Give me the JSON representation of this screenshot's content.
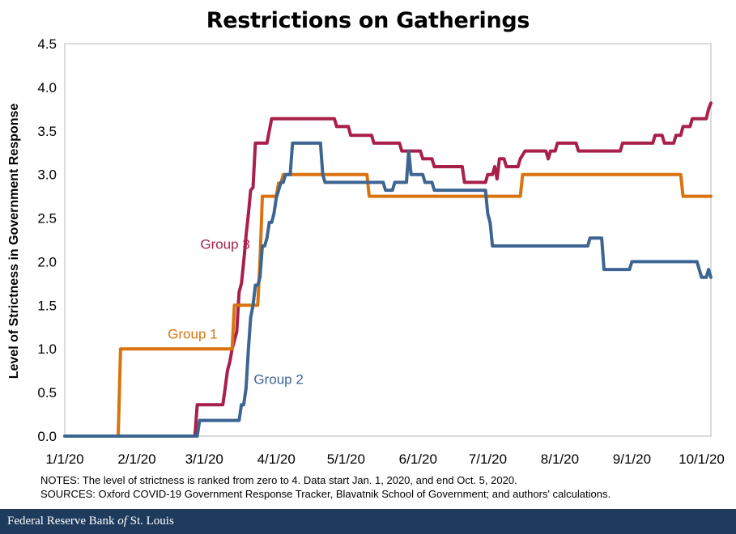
{
  "chart_data": {
    "type": "line",
    "title": "Restrictions on Gatherings",
    "ylabel": "Level of Strictness in Government Response",
    "xlabel": "",
    "ylim": [
      0,
      4.5
    ],
    "y_ticks": [
      "0.0",
      "0.5",
      "1.0",
      "1.5",
      "2.0",
      "2.5",
      "3.0",
      "3.5",
      "4.0",
      "4.5"
    ],
    "x_ticks": [
      "1/1/20",
      "2/1/20",
      "3/1/20",
      "4/1/20",
      "5/1/20",
      "6/1/20",
      "7/1/20",
      "8/1/20",
      "9/1/20",
      "10/1/20"
    ],
    "x_range": [
      "2020-01-01",
      "2020-10-05"
    ],
    "grid": false,
    "series": [
      {
        "name": "Group 3",
        "color": "#a8204a",
        "points": [
          [
            "2020-01-01",
            0
          ],
          [
            "2020-02-26",
            0
          ],
          [
            "2020-02-27",
            0.36
          ],
          [
            "2020-03-09",
            0.36
          ],
          [
            "2020-03-10",
            0.55
          ],
          [
            "2020-03-11",
            0.75
          ],
          [
            "2020-03-12",
            0.85
          ],
          [
            "2020-03-13",
            1.0
          ],
          [
            "2020-03-15",
            1.2
          ],
          [
            "2020-03-16",
            1.65
          ],
          [
            "2020-03-17",
            1.75
          ],
          [
            "2020-03-18",
            2.0
          ],
          [
            "2020-03-19",
            2.3
          ],
          [
            "2020-03-20",
            2.55
          ],
          [
            "2020-03-21",
            2.82
          ],
          [
            "2020-03-22",
            2.85
          ],
          [
            "2020-03-23",
            3.36
          ],
          [
            "2020-03-28",
            3.36
          ],
          [
            "2020-03-29",
            3.5
          ],
          [
            "2020-03-30",
            3.64
          ],
          [
            "2020-04-26",
            3.64
          ],
          [
            "2020-04-27",
            3.55
          ],
          [
            "2020-05-02",
            3.55
          ],
          [
            "2020-05-03",
            3.45
          ],
          [
            "2020-05-12",
            3.45
          ],
          [
            "2020-05-13",
            3.36
          ],
          [
            "2020-05-24",
            3.36
          ],
          [
            "2020-05-25",
            3.27
          ],
          [
            "2020-06-02",
            3.27
          ],
          [
            "2020-06-03",
            3.18
          ],
          [
            "2020-06-07",
            3.18
          ],
          [
            "2020-06-08",
            3.09
          ],
          [
            "2020-06-20",
            3.09
          ],
          [
            "2020-06-21",
            2.91
          ],
          [
            "2020-06-30",
            2.91
          ],
          [
            "2020-07-01",
            3.0
          ],
          [
            "2020-07-03",
            3.0
          ],
          [
            "2020-07-04",
            3.09
          ],
          [
            "2020-07-05",
            2.95
          ],
          [
            "2020-07-06",
            3.18
          ],
          [
            "2020-07-08",
            3.18
          ],
          [
            "2020-07-09",
            3.09
          ],
          [
            "2020-07-14",
            3.09
          ],
          [
            "2020-07-15",
            3.18
          ],
          [
            "2020-07-17",
            3.27
          ],
          [
            "2020-07-26",
            3.27
          ],
          [
            "2020-07-27",
            3.18
          ],
          [
            "2020-07-28",
            3.27
          ],
          [
            "2020-07-30",
            3.27
          ],
          [
            "2020-07-31",
            3.36
          ],
          [
            "2020-08-08",
            3.36
          ],
          [
            "2020-08-09",
            3.27
          ],
          [
            "2020-08-27",
            3.27
          ],
          [
            "2020-08-28",
            3.36
          ],
          [
            "2020-09-10",
            3.36
          ],
          [
            "2020-09-11",
            3.45
          ],
          [
            "2020-09-14",
            3.45
          ],
          [
            "2020-09-15",
            3.36
          ],
          [
            "2020-09-19",
            3.36
          ],
          [
            "2020-09-20",
            3.45
          ],
          [
            "2020-09-22",
            3.45
          ],
          [
            "2020-09-23",
            3.55
          ],
          [
            "2020-09-26",
            3.55
          ],
          [
            "2020-09-27",
            3.64
          ],
          [
            "2020-10-03",
            3.64
          ],
          [
            "2020-10-04",
            3.75
          ],
          [
            "2020-10-05",
            3.82
          ]
        ]
      },
      {
        "name": "Group 1",
        "color": "#d9730d",
        "points": [
          [
            "2020-01-01",
            0
          ],
          [
            "2020-01-24",
            0
          ],
          [
            "2020-01-25",
            1.0
          ],
          [
            "2020-03-13",
            1.0
          ],
          [
            "2020-03-14",
            1.5
          ],
          [
            "2020-03-24",
            1.5
          ],
          [
            "2020-03-25",
            2.0
          ],
          [
            "2020-03-26",
            2.75
          ],
          [
            "2020-04-01",
            2.75
          ],
          [
            "2020-04-02",
            2.9
          ],
          [
            "2020-04-03",
            2.9
          ],
          [
            "2020-04-04",
            3.0
          ],
          [
            "2020-05-10",
            3.0
          ],
          [
            "2020-05-11",
            2.75
          ],
          [
            "2020-07-15",
            2.75
          ],
          [
            "2020-07-16",
            3.0
          ],
          [
            "2020-09-22",
            3.0
          ],
          [
            "2020-09-23",
            2.75
          ],
          [
            "2020-10-05",
            2.75
          ]
        ]
      },
      {
        "name": "Group 2",
        "color": "#3d6592",
        "points": [
          [
            "2020-01-01",
            0
          ],
          [
            "2020-02-27",
            0
          ],
          [
            "2020-02-28",
            0.18
          ],
          [
            "2020-03-16",
            0.18
          ],
          [
            "2020-03-17",
            0.36
          ],
          [
            "2020-03-18",
            0.36
          ],
          [
            "2020-03-19",
            0.55
          ],
          [
            "2020-03-20",
            1.0
          ],
          [
            "2020-03-21",
            1.36
          ],
          [
            "2020-03-22",
            1.5
          ],
          [
            "2020-03-23",
            1.73
          ],
          [
            "2020-03-24",
            1.73
          ],
          [
            "2020-03-25",
            1.82
          ],
          [
            "2020-03-26",
            2.18
          ],
          [
            "2020-03-27",
            2.18
          ],
          [
            "2020-03-28",
            2.27
          ],
          [
            "2020-03-29",
            2.45
          ],
          [
            "2020-03-30",
            2.45
          ],
          [
            "2020-03-31",
            2.55
          ],
          [
            "2020-04-01",
            2.73
          ],
          [
            "2020-04-02",
            2.82
          ],
          [
            "2020-04-03",
            2.91
          ],
          [
            "2020-04-04",
            2.91
          ],
          [
            "2020-04-05",
            3.0
          ],
          [
            "2020-04-07",
            3.0
          ],
          [
            "2020-04-08",
            3.36
          ],
          [
            "2020-04-20",
            3.36
          ],
          [
            "2020-04-21",
            3.0
          ],
          [
            "2020-04-22",
            2.91
          ],
          [
            "2020-05-17",
            2.91
          ],
          [
            "2020-05-18",
            2.82
          ],
          [
            "2020-05-21",
            2.82
          ],
          [
            "2020-05-22",
            2.91
          ],
          [
            "2020-05-27",
            2.91
          ],
          [
            "2020-05-28",
            3.27
          ],
          [
            "2020-05-29",
            3.0
          ],
          [
            "2020-06-03",
            3.0
          ],
          [
            "2020-06-04",
            2.91
          ],
          [
            "2020-06-07",
            2.91
          ],
          [
            "2020-06-08",
            2.82
          ],
          [
            "2020-06-30",
            2.82
          ],
          [
            "2020-07-01",
            2.55
          ],
          [
            "2020-07-02",
            2.45
          ],
          [
            "2020-07-03",
            2.18
          ],
          [
            "2020-08-13",
            2.18
          ],
          [
            "2020-08-14",
            2.27
          ],
          [
            "2020-08-19",
            2.27
          ],
          [
            "2020-08-20",
            1.91
          ],
          [
            "2020-08-31",
            1.91
          ],
          [
            "2020-09-01",
            2.0
          ],
          [
            "2020-09-29",
            2.0
          ],
          [
            "2020-09-30",
            1.91
          ],
          [
            "2020-10-01",
            1.82
          ],
          [
            "2020-10-03",
            1.82
          ],
          [
            "2020-10-04",
            1.91
          ],
          [
            "2020-10-05",
            1.82
          ]
        ]
      }
    ],
    "annotations": [
      {
        "series": "Group 3",
        "text": "Group 3",
        "at": [
          "2020-03-10",
          2.15
        ]
      },
      {
        "series": "Group 1",
        "text": "Group 1",
        "at": [
          "2020-02-25",
          1.12
        ]
      },
      {
        "series": "Group 2",
        "text": "Group 2",
        "at": [
          "2020-04-02",
          0.6
        ]
      }
    ]
  },
  "notes": "NOTES: The level of strictness is ranked from zero to 4. Data start Jan. 1, 2020, and end Oct. 5, 2020.",
  "sources": "SOURCES: Oxford COVID-19 Government  Response Tracker, Blavatnik School of Government;  and authors' calculations.",
  "footer": {
    "prefix": "Federal Reserve Bank ",
    "italic": "of",
    "suffix": " St. Louis"
  }
}
